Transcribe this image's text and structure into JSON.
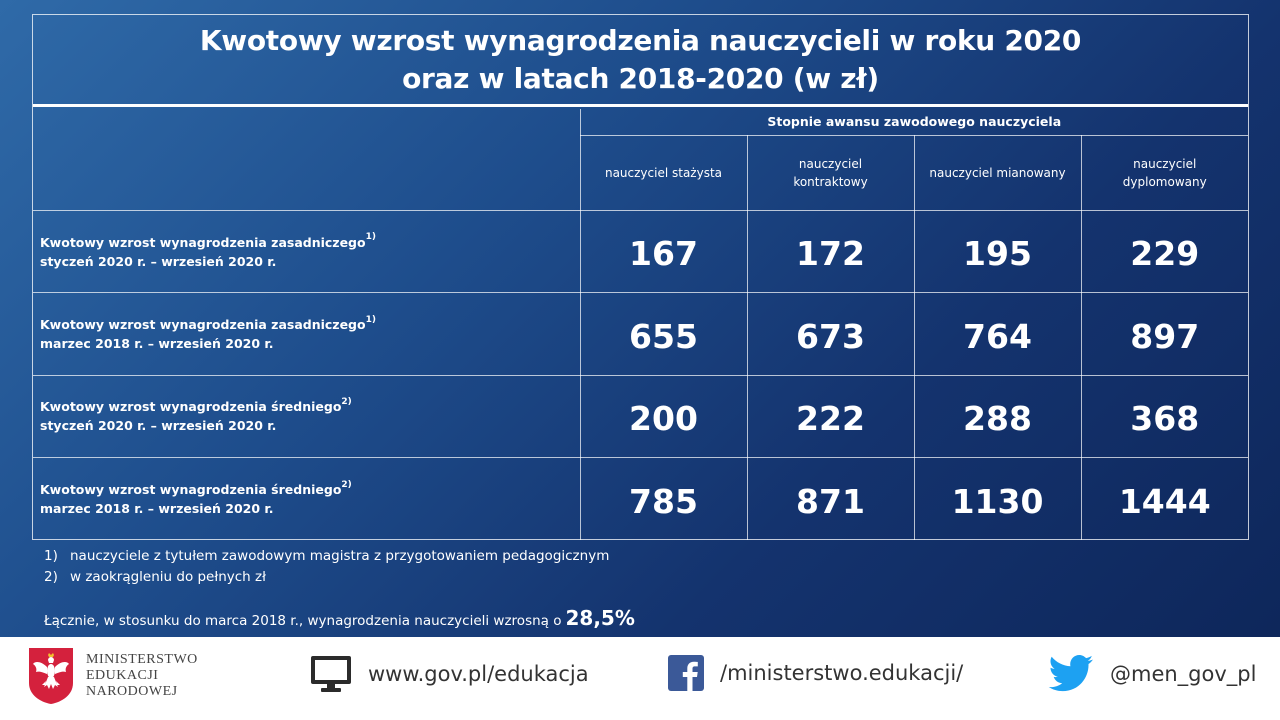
{
  "title": {
    "line1": "Kwotowy wzrost wynagrodzenia nauczycieli w roku 2020",
    "line2": "oraz w latach 2018-2020 (w zł)"
  },
  "table": {
    "group_header": "Stopnie awansu zawodowego nauczyciela",
    "columns": [
      [
        "nauczyciel stażysta"
      ],
      [
        "nauczyciel",
        "kontraktowy"
      ],
      [
        "nauczyciel mianowany"
      ],
      [
        "nauczyciel",
        "dyplomowany"
      ]
    ],
    "rows": [
      {
        "line1": "Kwotowy wzrost wynagrodzenia zasadniczego",
        "sup": "1)",
        "line2": "styczeń 2020 r. – wrzesień 2020 r.",
        "values": [
          "167",
          "172",
          "195",
          "229"
        ]
      },
      {
        "line1": "Kwotowy wzrost wynagrodzenia zasadniczego",
        "sup": "1)",
        "line2": "marzec 2018 r. – wrzesień 2020 r.",
        "values": [
          "655",
          "673",
          "764",
          "897"
        ]
      },
      {
        "line1": "Kwotowy wzrost wynagrodzenia średniego",
        "sup": "2)",
        "line2": "styczeń 2020 r. – wrzesień 2020 r.",
        "values": [
          "200",
          "222",
          "288",
          "368"
        ]
      },
      {
        "line1": "Kwotowy wzrost wynagrodzenia średniego",
        "sup": "2)",
        "line2": "marzec 2018 r. – wrzesień 2020 r.",
        "values": [
          "785",
          "871",
          "1130",
          "1444"
        ]
      }
    ]
  },
  "footnotes": [
    {
      "num": "1)",
      "text": "nauczyciele z tytułem zawodowym magistra  z przygotowaniem pedagogicznym"
    },
    {
      "num": "2)",
      "text": "w zaokrągleniu do pełnych zł"
    }
  ],
  "summary": {
    "text": "Łącznie, w stosunku do marca 2018 r., wynagrodzenia nauczycieli wzrosną o",
    "percent": "28,5%"
  },
  "footer": {
    "ministry": [
      "MINISTERSTWO",
      "EDUKACJI",
      "NARODOWEJ"
    ],
    "website": "www.gov.pl/edukacja",
    "facebook": "/ministerstwo.edukacji/",
    "twitter": "@men_gov_pl",
    "icons": {
      "emblem": "polish-eagle-emblem-icon",
      "website": "monitor-icon",
      "facebook": "facebook-icon",
      "twitter": "twitter-bird-icon"
    },
    "colors": {
      "emblem_red": "#d4213d",
      "facebook": "#3b5998",
      "twitter": "#1da1f2",
      "monitor": "#2b2b2b"
    }
  }
}
